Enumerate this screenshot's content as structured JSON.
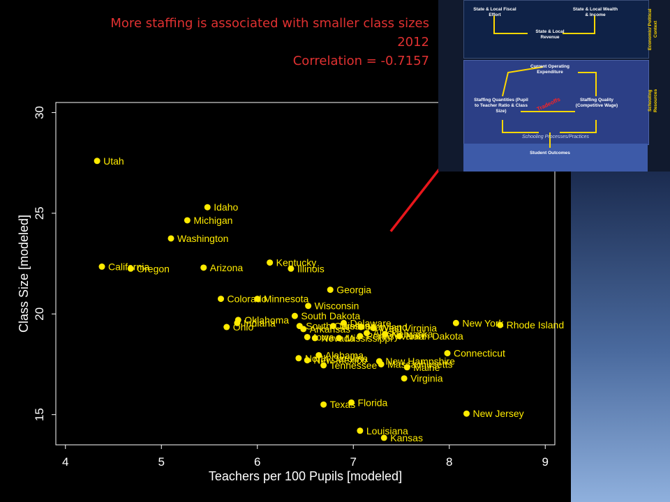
{
  "slide": {
    "title_lines": [
      "More staffing is associated with smaller class sizes",
      "2012",
      "Correlation = -0.7157"
    ]
  },
  "colors": {
    "background": "#000000",
    "title": "#e03131",
    "point": "#ffeb00",
    "label": "#ffeb00",
    "plot_border": "#ffffff",
    "axis_text": "#ffffff",
    "arrow": "#e8161b"
  },
  "inset": {
    "state_local_fiscal_effort": "State & Local Fiscal Effort",
    "state_local_wealth": "State & Local Wealth & Income",
    "state_local_revenue": "State & Local Revenue",
    "side_economic": "Economic/ Political Context",
    "current_operating": "Current Operating Expenditure",
    "staffing_quantities": "Staffing Quantities (Pupil to Teacher Ratio & Class Size)",
    "staffing_quality": "Staffing Quality (Competitive Wage)",
    "tradeoffs": "Tradeoffs",
    "side_schooling": "Schooling Resources",
    "processes": "Schooling Processes/Practices",
    "student_outcomes": "Student Outcomes"
  },
  "chart_data": {
    "type": "scatter",
    "title": "",
    "xlabel": "Teachers per 100 Pupils [modeled]",
    "ylabel": "Class Size [modeled]",
    "xlim": [
      3.9,
      9.1
    ],
    "ylim": [
      13.5,
      30.5
    ],
    "xticks": [
      4,
      5,
      6,
      7,
      8,
      9
    ],
    "yticks": [
      15,
      20,
      25,
      30
    ],
    "grid": false,
    "points": [
      {
        "label": "Utah",
        "x": 4.33,
        "y": 27.6
      },
      {
        "label": "Idaho",
        "x": 5.48,
        "y": 25.3
      },
      {
        "label": "Michigan",
        "x": 5.27,
        "y": 24.65
      },
      {
        "label": "Washington",
        "x": 5.1,
        "y": 23.75
      },
      {
        "label": "California",
        "x": 4.38,
        "y": 22.35
      },
      {
        "label": "Oregon",
        "x": 4.68,
        "y": 22.25
      },
      {
        "label": "Arizona",
        "x": 5.44,
        "y": 22.3
      },
      {
        "label": "Kentucky",
        "x": 6.13,
        "y": 22.55
      },
      {
        "label": "Illinois",
        "x": 6.35,
        "y": 22.25
      },
      {
        "label": "Georgia",
        "x": 6.76,
        "y": 21.2
      },
      {
        "label": "Colorado",
        "x": 5.62,
        "y": 20.75
      },
      {
        "label": "Minnesota",
        "x": 6.0,
        "y": 20.75
      },
      {
        "label": "Wisconsin",
        "x": 6.53,
        "y": 20.4
      },
      {
        "label": "South Dakota",
        "x": 6.39,
        "y": 19.9
      },
      {
        "label": "Oklahoma",
        "x": 5.8,
        "y": 19.7
      },
      {
        "label": "Indiana",
        "x": 5.79,
        "y": 19.55
      },
      {
        "label": "Ohio",
        "x": 5.68,
        "y": 19.35
      },
      {
        "label": "South Carolina",
        "x": 6.44,
        "y": 19.4
      },
      {
        "label": "Arkansas",
        "x": 6.48,
        "y": 19.25
      },
      {
        "label": "Delaware",
        "x": 6.9,
        "y": 19.55
      },
      {
        "label": "Missouri",
        "x": 6.79,
        "y": 19.4
      },
      {
        "label": "Maryland",
        "x": 7.08,
        "y": 19.35
      },
      {
        "label": "West Virginia",
        "x": 7.21,
        "y": 19.3
      },
      {
        "label": "Alaska",
        "x": 7.14,
        "y": 19.05
      },
      {
        "label": "Nebraska",
        "x": 7.33,
        "y": 19.0
      },
      {
        "label": "North Dakota",
        "x": 7.48,
        "y": 18.9
      },
      {
        "label": "Iowa",
        "x": 6.52,
        "y": 18.85
      },
      {
        "label": "Nevada",
        "x": 6.6,
        "y": 18.8
      },
      {
        "label": "Mississippi",
        "x": 6.85,
        "y": 18.8
      },
      {
        "label": "Pennsylvania",
        "x": 7.07,
        "y": 18.9
      },
      {
        "label": "New York",
        "x": 8.07,
        "y": 19.55
      },
      {
        "label": "Rhode Island",
        "x": 8.53,
        "y": 19.45
      },
      {
        "label": "Connecticut",
        "x": 7.98,
        "y": 18.05
      },
      {
        "label": "Alabama",
        "x": 6.64,
        "y": 17.95
      },
      {
        "label": "North Carolina",
        "x": 6.43,
        "y": 17.8
      },
      {
        "label": "New Mexico",
        "x": 6.52,
        "y": 17.7
      },
      {
        "label": "New Hampshire",
        "x": 7.27,
        "y": 17.65
      },
      {
        "label": "Massachusetts",
        "x": 7.29,
        "y": 17.5
      },
      {
        "label": "Tennessee",
        "x": 6.69,
        "y": 17.45
      },
      {
        "label": "Maine",
        "x": 7.56,
        "y": 17.35
      },
      {
        "label": "Virginia",
        "x": 7.53,
        "y": 16.8
      },
      {
        "label": "Texas",
        "x": 6.69,
        "y": 15.5
      },
      {
        "label": "Florida",
        "x": 6.98,
        "y": 15.6
      },
      {
        "label": "New Jersey",
        "x": 8.18,
        "y": 15.05
      },
      {
        "label": "Louisiana",
        "x": 7.07,
        "y": 14.2
      },
      {
        "label": "Kansas",
        "x": 7.32,
        "y": 13.85
      }
    ],
    "annotation": {
      "type": "arrow",
      "from": {
        "x": 7.39,
        "y": 24.1
      },
      "to": "inset-staffing-quantities",
      "color": "#e8161b"
    }
  }
}
